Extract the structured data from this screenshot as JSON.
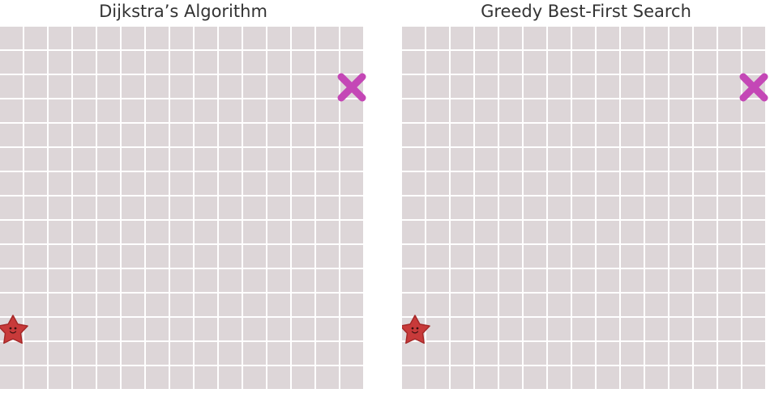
{
  "panels": [
    {
      "title": "Dijkstra’s Algorithm",
      "grid": {
        "cols": 15,
        "rows": 15
      },
      "start": {
        "col": 0,
        "row": 12,
        "icon": "star-smiley-icon"
      },
      "goal": {
        "col": 14,
        "row": 2,
        "icon": "x-mark-icon"
      }
    },
    {
      "title": "Greedy Best-First Search",
      "grid": {
        "cols": 15,
        "rows": 15
      },
      "start": {
        "col": 0,
        "row": 12,
        "icon": "star-smiley-icon"
      },
      "goal": {
        "col": 14,
        "row": 2,
        "icon": "x-mark-icon"
      }
    }
  ],
  "colors": {
    "cell": "#ddd6d8",
    "gridline": "#ffffff",
    "start": "#c83a3a",
    "goal": "#c447b6",
    "title": "#333333"
  }
}
